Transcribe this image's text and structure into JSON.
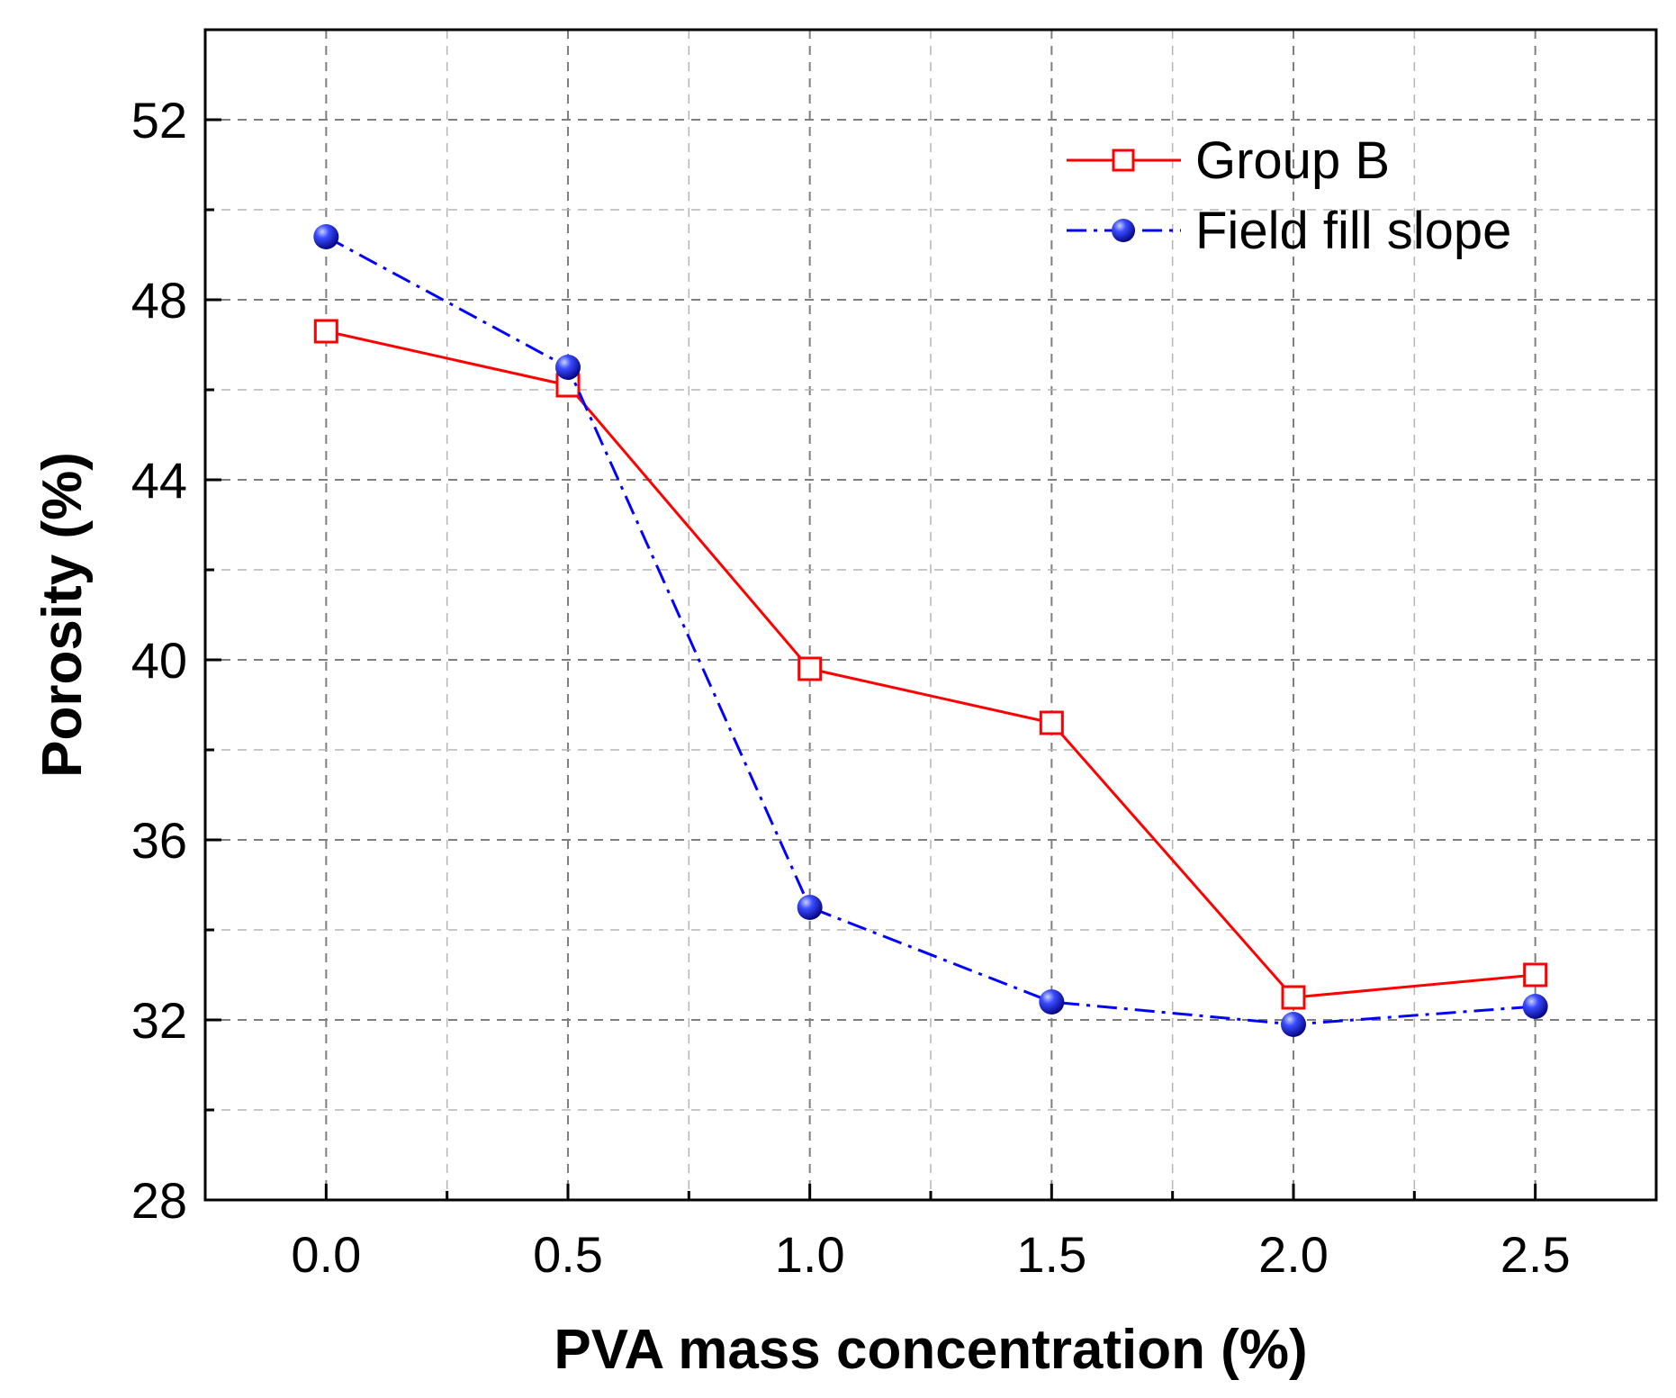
{
  "chart_data": {
    "type": "line",
    "title": "",
    "xlabel": "PVA mass concentration (%)",
    "ylabel": "Porosity (%)",
    "xlim": [
      -0.25,
      2.75
    ],
    "ylim": [
      28,
      54
    ],
    "grid": true,
    "legend_position": "top-right",
    "x": [
      0.0,
      0.5,
      1.0,
      1.5,
      2.0,
      2.5
    ],
    "x_tick_labels": [
      "0.0",
      "0.5",
      "1.0",
      "1.5",
      "2.0",
      "2.5"
    ],
    "y_ticks": [
      28,
      32,
      36,
      40,
      44,
      48,
      52
    ],
    "y_tick_labels": [
      "28",
      "32",
      "36",
      "40",
      "44",
      "48",
      "52"
    ],
    "series": [
      {
        "name": "Group B",
        "values": [
          47.3,
          46.1,
          39.8,
          38.6,
          32.5,
          33.0
        ],
        "color": "#ff0000",
        "marker": "open-square",
        "line_style": "solid"
      },
      {
        "name": "Field fill slope",
        "values": [
          49.4,
          46.5,
          34.5,
          32.4,
          31.9,
          32.3
        ],
        "color": "#0000ff",
        "marker": "filled-circle",
        "line_style": "dash-dot"
      }
    ]
  }
}
